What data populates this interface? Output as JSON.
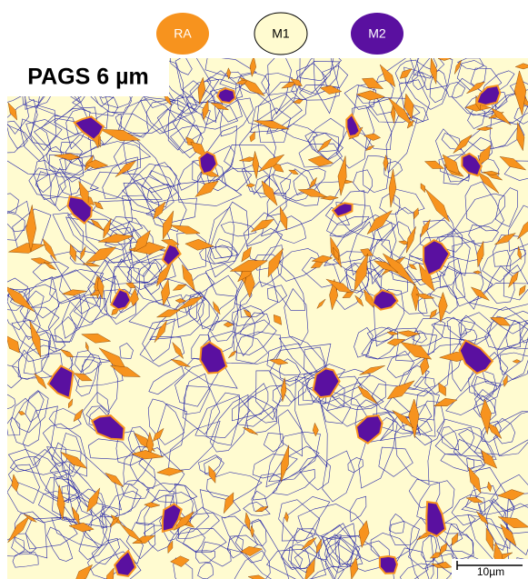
{
  "legend": [
    {
      "label": "RA",
      "color": "#f7931e"
    },
    {
      "label": "M1",
      "color": "#fffbd0"
    },
    {
      "label": "M2",
      "color": "#5a10a0"
    }
  ],
  "title": "PAGS 6 µm",
  "scale_bar": "10µm"
}
